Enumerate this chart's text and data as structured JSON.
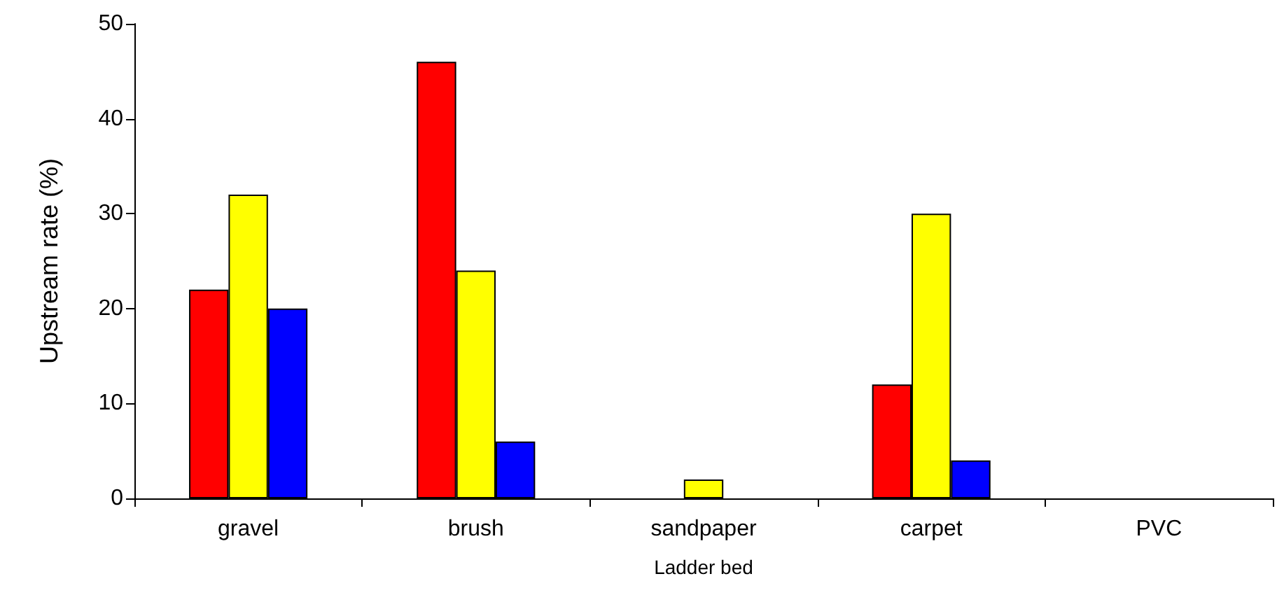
{
  "chart_data": {
    "type": "bar",
    "xlabel": "Ladder bed",
    "ylabel": "Upstream rate (%)",
    "categories": [
      "gravel",
      "brush",
      "sandpaper",
      "carpet",
      "PVC"
    ],
    "series": [
      {
        "color": "#ff0000",
        "values": [
          22,
          46,
          0,
          12,
          0
        ]
      },
      {
        "color": "#ffff00",
        "values": [
          32,
          24,
          2,
          30,
          0
        ]
      },
      {
        "color": "#0000ff",
        "values": [
          20,
          6,
          0,
          4,
          0
        ]
      }
    ],
    "ylim": [
      0,
      50
    ],
    "yticks": [
      0,
      10,
      20,
      30,
      40,
      50
    ],
    "grid": false
  }
}
